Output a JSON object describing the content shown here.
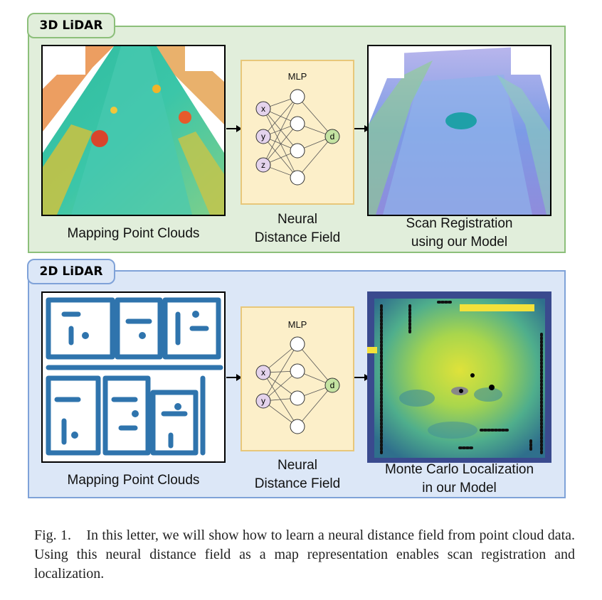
{
  "panels": {
    "lidar3d": {
      "tab_label": "3D LiDAR",
      "left_caption": "Mapping Point Clouds",
      "middle_caption_line1": "Neural",
      "middle_caption_line2": "Distance Field",
      "right_caption_line1": "Scan Registration",
      "right_caption_line2": "using our Model",
      "mlp_label": "MLP",
      "inputs": [
        "x",
        "y",
        "z"
      ],
      "output": "d"
    },
    "lidar2d": {
      "tab_label": "2D LiDAR",
      "left_caption": "Mapping Point Clouds",
      "middle_caption_line1": "Neural",
      "middle_caption_line2": "Distance Field",
      "right_caption_line1": "Monte Carlo Localization",
      "right_caption_line2": "in our Model",
      "mlp_label": "MLP",
      "inputs": [
        "x",
        "y"
      ],
      "output": "d"
    }
  },
  "figure_caption": {
    "label": "Fig. 1.",
    "text": "In this letter, we will show how to learn a neural distance field from point cloud data. Using this neural distance field as a map representation enables scan registration and localization."
  },
  "colors": {
    "panel3d_bg": "#e1eedb",
    "panel2d_bg": "#dce7f7",
    "mlp_bg": "#fcefc9",
    "input_node": "#e4d3ec",
    "output_node": "#c4e3a2",
    "pointcloud2d": "#2f74ad"
  }
}
